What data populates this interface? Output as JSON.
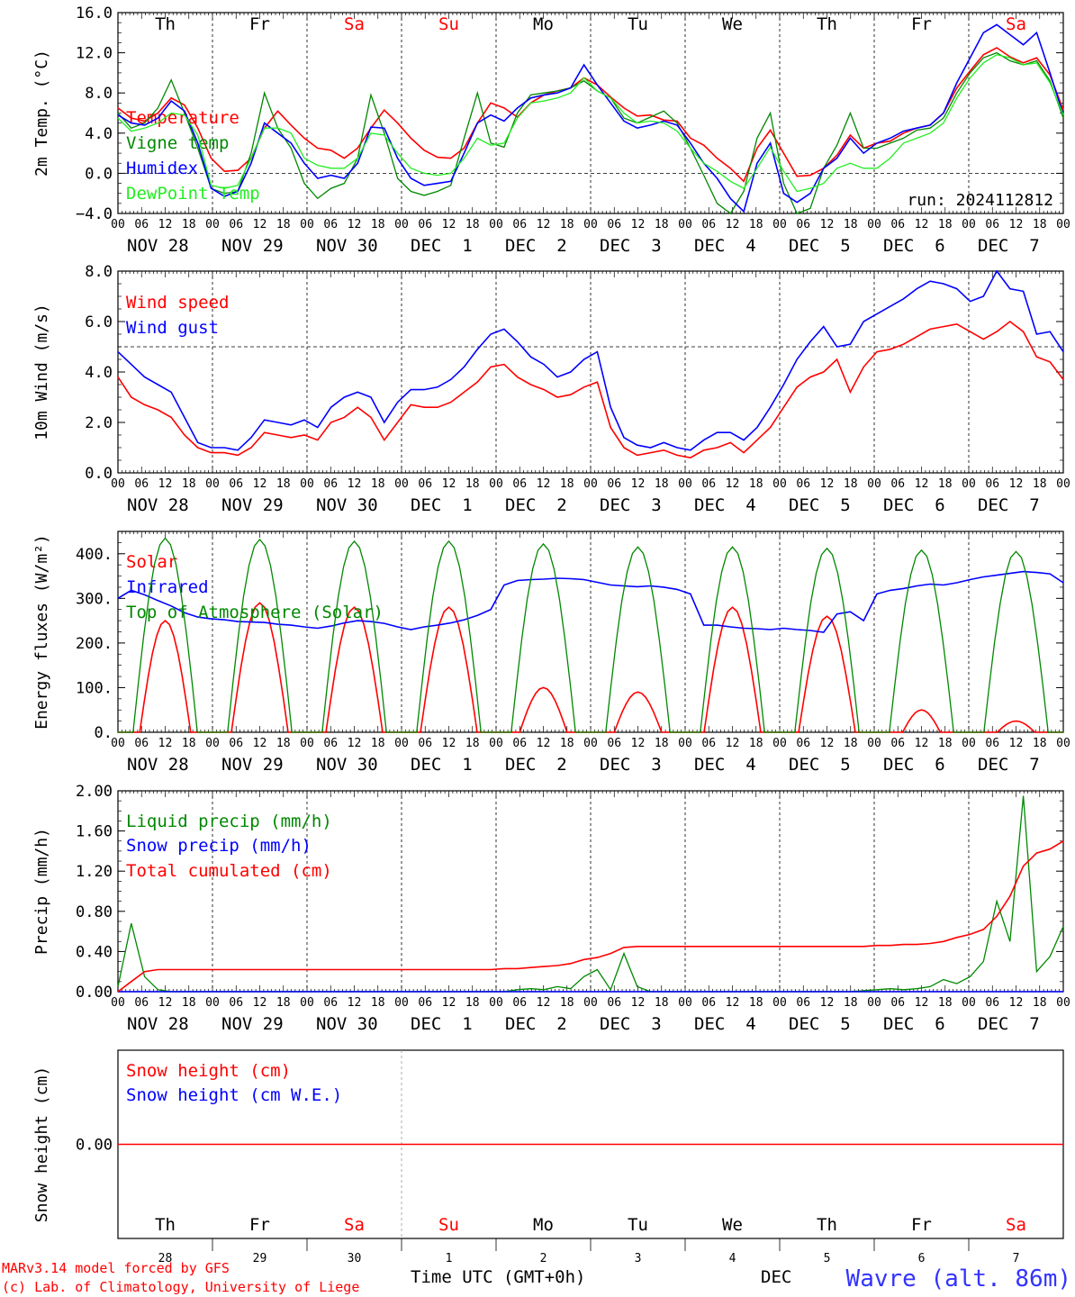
{
  "days": [
    "Th",
    "Fr",
    "Sa",
    "Su",
    "Mo",
    "Tu",
    "We",
    "Th",
    "Fr",
    "Sa"
  ],
  "weekend_days": [
    "Sa",
    "Su"
  ],
  "date_labels": [
    "NOV 28",
    "NOV 29",
    "NOV 30",
    "DEC  1",
    "DEC  2",
    "DEC  3",
    "DEC  4",
    "DEC  5",
    "DEC  6",
    "DEC  7"
  ],
  "hour_labels": [
    "00",
    "06",
    "12",
    "18"
  ],
  "end_hour_label": "00",
  "run_label": "run: 2024112812",
  "bottom_axis": {
    "day_numbers": [
      "28",
      "29",
      "30",
      "1",
      "2",
      "3",
      "4",
      "5",
      "6",
      "7"
    ],
    "time_label": "Time UTC (GMT+0h)",
    "month_label": "DEC"
  },
  "footer": {
    "model_line": "MARv3.14 model forced by GFS",
    "lab_line": "(c) Lab. of Climatology, University of Liege",
    "station": "Wavre (alt. 86m)"
  },
  "colors": {
    "red": "#ff0000",
    "green": "#008800",
    "blue": "#0000ff",
    "lightgreen": "#22ee22",
    "station": "#3333ff"
  },
  "chart_data": [
    {
      "id": "temp",
      "type": "line",
      "ylabel": "2m Temp. (°C)",
      "ylim": [
        -4,
        16
      ],
      "ticks": [
        "16.0",
        "12.0",
        "8.0",
        "4.0",
        "0.0",
        "−4.0"
      ],
      "tick_values": [
        16,
        12,
        8,
        4,
        0,
        -4
      ],
      "ref_line": 0,
      "series": [
        {
          "name": "Temperature",
          "color": "red",
          "values": [
            6.5,
            5.5,
            5.2,
            6.0,
            7.5,
            6.8,
            4.5,
            1.5,
            0.2,
            0.3,
            1.5,
            4.5,
            6.2,
            4.8,
            3.5,
            2.5,
            2.3,
            1.5,
            2.5,
            4.5,
            6.3,
            5.0,
            3.5,
            2.3,
            1.6,
            1.5,
            2.5,
            5.0,
            7.0,
            6.5,
            5.6,
            7.0,
            7.8,
            8.2,
            8.5,
            9.5,
            8.8,
            7.6,
            6.5,
            5.7,
            5.8,
            5.3,
            5.2,
            3.5,
            2.8,
            1.5,
            0.5,
            -0.8,
            2.5,
            4.3,
            2.0,
            -0.3,
            -0.2,
            0.5,
            1.8,
            3.8,
            2.5,
            3.0,
            3.2,
            4.0,
            4.5,
            4.8,
            6.0,
            8.5,
            10.2,
            11.8,
            12.5,
            11.6,
            11.0,
            11.5,
            9.8,
            6.3
          ]
        },
        {
          "name": "Vigne temp",
          "color": "green",
          "values": [
            6.0,
            4.5,
            5.0,
            6.5,
            9.3,
            6.0,
            2.5,
            -1.5,
            -2.0,
            -1.8,
            2.0,
            8.0,
            4.5,
            2.5,
            -1.0,
            -2.5,
            -1.5,
            -1.0,
            1.5,
            7.8,
            4.0,
            -0.5,
            -1.8,
            -2.2,
            -1.8,
            -1.2,
            3.5,
            8.0,
            3.0,
            2.6,
            6.0,
            7.8,
            8.0,
            8.2,
            8.5,
            9.2,
            8.2,
            7.5,
            5.5,
            5.0,
            5.6,
            6.2,
            5.0,
            2.5,
            -0.2,
            -3.0,
            -4.0,
            -1.8,
            3.5,
            6.0,
            -1.0,
            -4.0,
            -3.5,
            0.5,
            2.8,
            6.0,
            2.5,
            2.5,
            3.0,
            3.5,
            4.3,
            4.5,
            5.5,
            8.0,
            10.0,
            11.5,
            12.0,
            11.2,
            10.8,
            11.2,
            9.2,
            5.5
          ]
        },
        {
          "name": "Humidex",
          "color": "blue",
          "values": [
            5.8,
            5.0,
            4.8,
            5.5,
            7.2,
            6.2,
            3.0,
            -1.5,
            -2.3,
            -1.8,
            1.0,
            5.0,
            4.0,
            3.0,
            1.0,
            -0.5,
            -0.2,
            -0.5,
            1.0,
            4.6,
            4.5,
            1.5,
            -0.5,
            -1.2,
            -1.0,
            -0.8,
            2.0,
            5.0,
            5.8,
            5.2,
            6.5,
            7.5,
            7.8,
            8.0,
            8.5,
            10.8,
            8.8,
            7.0,
            5.2,
            4.5,
            4.8,
            5.2,
            4.8,
            3.0,
            1.0,
            -0.5,
            -2.5,
            -3.8,
            1.0,
            3.0,
            -2.0,
            -2.9,
            -2.0,
            0.5,
            1.5,
            3.5,
            2.0,
            3.0,
            3.5,
            4.2,
            4.5,
            4.8,
            6.0,
            9.0,
            11.5,
            14.0,
            14.8,
            13.8,
            12.8,
            14.0,
            10.0,
            5.8
          ]
        },
        {
          "name": "DewPoint Temp",
          "color": "lightgreen",
          "values": [
            5.5,
            4.2,
            4.5,
            5.0,
            6.0,
            5.8,
            3.8,
            -1.2,
            -1.5,
            -1.2,
            1.5,
            4.5,
            4.5,
            4.0,
            1.5,
            0.8,
            0.5,
            0.5,
            1.5,
            4.0,
            3.8,
            2.0,
            0.5,
            0.0,
            -0.2,
            0.0,
            1.5,
            3.5,
            2.8,
            3.0,
            5.5,
            7.0,
            7.2,
            7.5,
            8.0,
            9.5,
            8.2,
            7.5,
            6.0,
            5.0,
            5.2,
            5.0,
            4.2,
            2.5,
            1.0,
            0.2,
            -0.8,
            -1.5,
            0.5,
            2.6,
            0.2,
            -1.8,
            -1.5,
            -1.0,
            0.5,
            1.0,
            0.5,
            0.5,
            1.5,
            3.0,
            3.5,
            4.0,
            5.0,
            7.5,
            9.5,
            11.0,
            11.8,
            11.5,
            10.8,
            11.0,
            9.0,
            5.8
          ]
        }
      ]
    },
    {
      "id": "wind",
      "type": "line",
      "ylabel": "10m Wind (m/s)",
      "ylim": [
        0,
        8
      ],
      "ticks": [
        "8.0",
        "6.0",
        "4.0",
        "2.0",
        "0.0"
      ],
      "tick_values": [
        8,
        6,
        4,
        2,
        0
      ],
      "ref_line": 5,
      "series": [
        {
          "name": "Wind speed",
          "color": "red",
          "values": [
            3.8,
            3.0,
            2.7,
            2.5,
            2.2,
            1.5,
            1.0,
            0.8,
            0.8,
            0.7,
            1.0,
            1.6,
            1.5,
            1.4,
            1.5,
            1.3,
            2.0,
            2.2,
            2.6,
            2.2,
            1.3,
            2.0,
            2.7,
            2.6,
            2.6,
            2.8,
            3.2,
            3.6,
            4.2,
            4.3,
            3.8,
            3.5,
            3.3,
            3.0,
            3.1,
            3.4,
            3.6,
            1.8,
            1.0,
            0.7,
            0.8,
            0.9,
            0.7,
            0.6,
            0.9,
            1.0,
            1.2,
            0.8,
            1.3,
            1.8,
            2.6,
            3.4,
            3.8,
            4.0,
            4.5,
            3.2,
            4.2,
            4.8,
            4.9,
            5.1,
            5.4,
            5.7,
            5.8,
            5.9,
            5.6,
            5.3,
            5.6,
            6.0,
            5.6,
            4.6,
            4.4,
            3.7
          ]
        },
        {
          "name": "Wind gust",
          "color": "blue",
          "values": [
            4.8,
            4.3,
            3.8,
            3.5,
            3.2,
            2.2,
            1.2,
            1.0,
            1.0,
            0.9,
            1.4,
            2.1,
            2.0,
            1.9,
            2.1,
            1.8,
            2.6,
            3.0,
            3.2,
            3.0,
            2.0,
            2.8,
            3.3,
            3.3,
            3.4,
            3.7,
            4.2,
            4.9,
            5.5,
            5.7,
            5.2,
            4.6,
            4.3,
            3.8,
            4.0,
            4.5,
            4.8,
            2.6,
            1.4,
            1.1,
            1.0,
            1.2,
            1.0,
            0.9,
            1.3,
            1.6,
            1.6,
            1.3,
            1.8,
            2.6,
            3.5,
            4.5,
            5.2,
            5.8,
            5.0,
            5.1,
            6.0,
            6.3,
            6.6,
            6.9,
            7.3,
            7.6,
            7.5,
            7.3,
            6.8,
            7.0,
            8.0,
            7.3,
            7.2,
            5.5,
            5.6,
            4.8
          ]
        }
      ]
    },
    {
      "id": "flux",
      "type": "line",
      "ylabel": "Energy fluxes (W/m²)",
      "ylim": [
        0,
        450
      ],
      "ticks": [
        "400.",
        "300.",
        "200.",
        "100.",
        "0."
      ],
      "tick_values": [
        400,
        300,
        200,
        100,
        0
      ],
      "ref_line": null,
      "series": [
        {
          "name": "Solar",
          "color": "red",
          "peaks": [
            250,
            290,
            280,
            280,
            100,
            90,
            280,
            260,
            50,
            25
          ],
          "peak_width": [
            0.27,
            0.3,
            0.3,
            0.3,
            0.25,
            0.25,
            0.3,
            0.3,
            0.2,
            0.2
          ]
        },
        {
          "name": "Infrared",
          "color": "blue",
          "values": [
            300,
            318,
            308,
            295,
            283,
            268,
            258,
            254,
            252,
            248,
            247,
            246,
            242,
            240,
            236,
            233,
            238,
            245,
            250,
            248,
            244,
            236,
            230,
            236,
            240,
            245,
            252,
            262,
            275,
            330,
            340,
            342,
            343,
            345,
            344,
            342,
            336,
            330,
            328,
            326,
            328,
            325,
            320,
            310,
            240,
            240,
            236,
            233,
            232,
            230,
            233,
            230,
            228,
            224,
            265,
            270,
            250,
            310,
            318,
            322,
            328,
            332,
            330,
            335,
            342,
            348,
            352,
            356,
            360,
            358,
            355,
            335
          ]
        },
        {
          "name": "Top of Atmosphere (Solar)",
          "color": "green",
          "peaks": [
            435,
            432,
            428,
            428,
            422,
            415,
            415,
            412,
            408,
            405
          ],
          "peak_width": [
            0.34,
            0.34,
            0.34,
            0.34,
            0.34,
            0.34,
            0.34,
            0.34,
            0.34,
            0.34
          ]
        }
      ]
    },
    {
      "id": "precip",
      "type": "line",
      "ylabel": "Precip (mm/h)",
      "ylim": [
        0,
        2
      ],
      "ticks": [
        "2.00",
        "1.60",
        "1.20",
        "0.80",
        "0.40",
        "0.00"
      ],
      "tick_values": [
        2,
        1.6,
        1.2,
        0.8,
        0.4,
        0
      ],
      "ref_line": null,
      "series": [
        {
          "name": "Liquid precip (mm/h)",
          "color": "green",
          "values": [
            0.05,
            0.68,
            0.15,
            0.02,
            0,
            0,
            0,
            0,
            0,
            0,
            0,
            0,
            0,
            0,
            0,
            0,
            0,
            0,
            0,
            0,
            0,
            0,
            0,
            0,
            0,
            0,
            0,
            0,
            0,
            0,
            0.02,
            0.03,
            0.02,
            0.05,
            0.03,
            0.15,
            0.22,
            0.02,
            0.38,
            0.05,
            0,
            0,
            0,
            0,
            0,
            0,
            0,
            0,
            0,
            0,
            0,
            0,
            0,
            0,
            0,
            0,
            0.01,
            0.02,
            0.03,
            0.02,
            0.03,
            0.05,
            0.12,
            0.08,
            0.15,
            0.3,
            0.9,
            0.5,
            1.95,
            0.2,
            0.35,
            0.65
          ]
        },
        {
          "name": "Snow precip (mm/h)",
          "color": "blue",
          "values": [
            0,
            0,
            0,
            0,
            0,
            0,
            0,
            0,
            0,
            0,
            0,
            0,
            0,
            0,
            0,
            0,
            0,
            0,
            0,
            0,
            0,
            0,
            0,
            0,
            0,
            0,
            0,
            0,
            0,
            0,
            0,
            0,
            0,
            0,
            0,
            0,
            0,
            0,
            0,
            0,
            0,
            0,
            0,
            0,
            0,
            0,
            0,
            0,
            0,
            0,
            0,
            0,
            0,
            0,
            0,
            0,
            0,
            0,
            0,
            0,
            0,
            0,
            0,
            0,
            0,
            0,
            0,
            0,
            0,
            0,
            0,
            0
          ]
        },
        {
          "name": "Total cumulated (cm)",
          "color": "red",
          "values": [
            0,
            0.1,
            0.2,
            0.22,
            0.22,
            0.22,
            0.22,
            0.22,
            0.22,
            0.22,
            0.22,
            0.22,
            0.22,
            0.22,
            0.22,
            0.22,
            0.22,
            0.22,
            0.22,
            0.22,
            0.22,
            0.22,
            0.22,
            0.22,
            0.22,
            0.22,
            0.22,
            0.22,
            0.22,
            0.23,
            0.23,
            0.24,
            0.25,
            0.26,
            0.28,
            0.32,
            0.34,
            0.38,
            0.44,
            0.45,
            0.45,
            0.45,
            0.45,
            0.45,
            0.45,
            0.45,
            0.45,
            0.45,
            0.45,
            0.45,
            0.45,
            0.45,
            0.45,
            0.45,
            0.45,
            0.45,
            0.45,
            0.46,
            0.46,
            0.47,
            0.47,
            0.48,
            0.5,
            0.54,
            0.57,
            0.62,
            0.75,
            0.95,
            1.25,
            1.38,
            1.42,
            1.5
          ]
        }
      ]
    },
    {
      "id": "snow",
      "type": "line",
      "ylabel": "Snow height (cm)",
      "ylim": [
        -1,
        1
      ],
      "ticks": [
        "0.00"
      ],
      "tick_values": [
        0
      ],
      "ref_line": null,
      "series": [
        {
          "name": "Snow height (cm)",
          "color": "red",
          "values": [
            0,
            0
          ]
        },
        {
          "name": "Snow height (cm W.E.)",
          "color": "blue",
          "values": []
        }
      ]
    }
  ]
}
